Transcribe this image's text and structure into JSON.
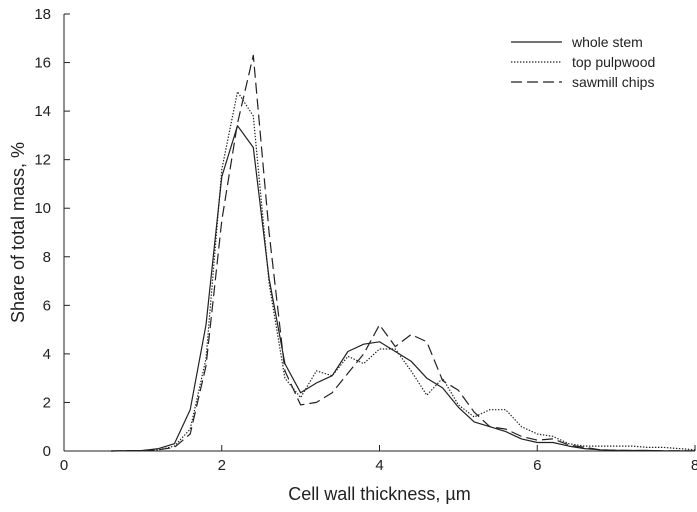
{
  "chart_data": {
    "type": "line",
    "title": "",
    "xlabel": "Cell wall thickness, µm",
    "ylabel": "Share of total mass, %",
    "xlim": [
      0,
      8
    ],
    "ylim": [
      0,
      18
    ],
    "xticks": [
      0,
      2,
      4,
      6,
      8
    ],
    "yticks": [
      0,
      2,
      4,
      6,
      8,
      10,
      12,
      14,
      16,
      18
    ],
    "grid": false,
    "legend_position": "top-right",
    "series": [
      {
        "name": "whole stem",
        "dash": "solid",
        "x": [
          0.6,
          1.0,
          1.2,
          1.4,
          1.6,
          1.8,
          2.0,
          2.2,
          2.4,
          2.6,
          2.8,
          3.0,
          3.2,
          3.4,
          3.6,
          3.8,
          4.0,
          4.2,
          4.4,
          4.6,
          4.8,
          5.0,
          5.2,
          5.4,
          5.6,
          5.8,
          6.0,
          6.2,
          6.4,
          6.6,
          6.8,
          7.0,
          7.2,
          7.4,
          7.6,
          7.8,
          8.0
        ],
        "y": [
          0,
          0.02,
          0.1,
          0.3,
          1.7,
          5.2,
          11.3,
          13.4,
          12.5,
          7.1,
          3.6,
          2.4,
          2.8,
          3.1,
          4.1,
          4.4,
          4.5,
          4.1,
          3.7,
          3.0,
          2.6,
          1.8,
          1.2,
          1.0,
          0.8,
          0.5,
          0.35,
          0.35,
          0.2,
          0.1,
          0.05,
          0.03,
          0.02,
          0.02,
          0.01,
          0.01,
          0.01
        ]
      },
      {
        "name": "top pulpwood",
        "dash": "dotted",
        "x": [
          0.6,
          1.0,
          1.2,
          1.4,
          1.6,
          1.8,
          2.0,
          2.2,
          2.4,
          2.6,
          2.8,
          3.0,
          3.2,
          3.4,
          3.6,
          3.8,
          4.0,
          4.2,
          4.4,
          4.6,
          4.8,
          5.0,
          5.2,
          5.4,
          5.6,
          5.8,
          6.0,
          6.2,
          6.4,
          6.6,
          6.8,
          7.0,
          7.2,
          7.4,
          7.6,
          7.8,
          8.0
        ],
        "y": [
          0,
          0.02,
          0.05,
          0.2,
          0.9,
          3.8,
          11.6,
          14.8,
          13.8,
          6.9,
          3.0,
          2.2,
          3.3,
          3.1,
          3.9,
          3.6,
          4.2,
          4.2,
          3.3,
          2.3,
          3.0,
          1.9,
          1.4,
          1.7,
          1.7,
          1.0,
          0.7,
          0.6,
          0.3,
          0.2,
          0.2,
          0.2,
          0.2,
          0.15,
          0.15,
          0.1,
          0.05
        ]
      },
      {
        "name": "sawmill chips",
        "dash": "dashed",
        "x": [
          0.6,
          1.0,
          1.2,
          1.4,
          1.6,
          1.8,
          2.0,
          2.2,
          2.4,
          2.6,
          2.8,
          3.0,
          3.2,
          3.4,
          3.6,
          3.8,
          4.0,
          4.2,
          4.4,
          4.6,
          4.8,
          5.0,
          5.2,
          5.4,
          5.6,
          5.8,
          6.0,
          6.2,
          6.4,
          6.6,
          6.8,
          7.0,
          7.2,
          7.4,
          7.6,
          7.8,
          8.0
        ],
        "y": [
          0,
          0.02,
          0.05,
          0.15,
          0.7,
          3.5,
          9.5,
          13.5,
          16.3,
          9.0,
          3.3,
          1.9,
          2.0,
          2.4,
          3.2,
          4.0,
          5.2,
          4.3,
          4.8,
          4.5,
          2.9,
          2.5,
          1.6,
          1.0,
          0.9,
          0.6,
          0.45,
          0.5,
          0.25,
          0.15,
          0.05,
          0.03,
          0.02,
          0.02,
          0.01,
          0.01,
          0.01
        ]
      }
    ]
  }
}
